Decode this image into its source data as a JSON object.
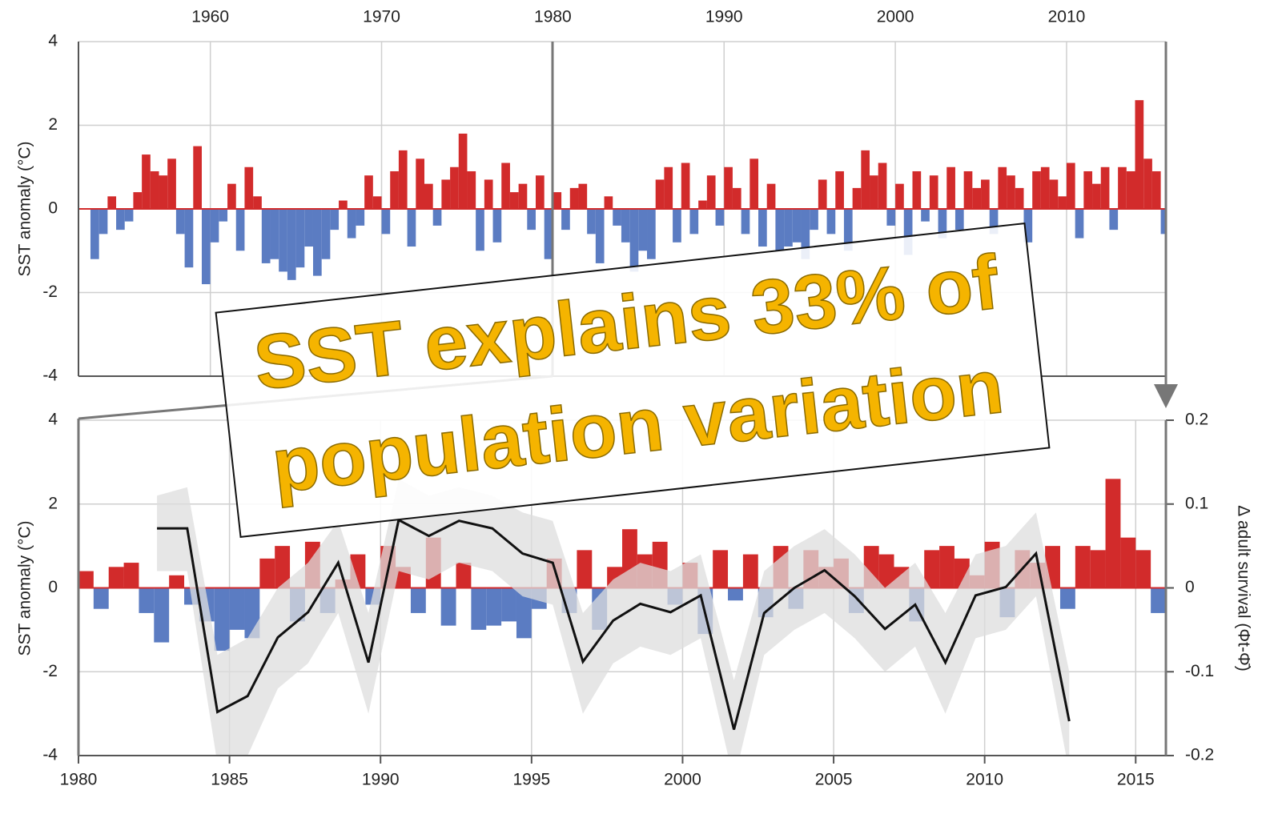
{
  "chart_data": [
    {
      "type": "bar",
      "y_label": "SST anomaly (°C)",
      "x": [
        1953,
        1953.5,
        1954,
        1954.5,
        1955,
        1955.5,
        1956,
        1956.5,
        1957,
        1957.5,
        1958,
        1958.5,
        1959,
        1959.5,
        1960,
        1960.5,
        1961,
        1961.5,
        1962,
        1962.5,
        1963,
        1963.5,
        1964,
        1964.5,
        1965,
        1965.5,
        1966,
        1966.5,
        1967,
        1967.5,
        1968,
        1968.5,
        1969,
        1969.5,
        1970,
        1970.5,
        1971,
        1971.5,
        1972,
        1972.5,
        1973,
        1973.5,
        1974,
        1974.5,
        1975,
        1975.5,
        1976,
        1976.5,
        1977,
        1977.5,
        1978,
        1978.5,
        1979,
        1979.5,
        1980,
        1980.5,
        1981,
        1981.5,
        1982,
        1982.5,
        1983,
        1983.5,
        1984,
        1984.5,
        1985,
        1985.5,
        1986,
        1986.5,
        1987,
        1987.5,
        1988,
        1988.5,
        1989,
        1989.5,
        1990,
        1990.5,
        1991,
        1991.5,
        1992,
        1992.5,
        1993,
        1993.5,
        1994,
        1994.5,
        1995,
        1995.5,
        1996,
        1996.5,
        1997,
        1997.5,
        1998,
        1998.5,
        1999,
        1999.5,
        2000,
        2000.5,
        2001,
        2001.5,
        2002,
        2002.5,
        2003,
        2003.5,
        2004,
        2004.5,
        2005,
        2005.5,
        2006,
        2006.5,
        2007,
        2007.5,
        2008,
        2008.5,
        2009,
        2009.5,
        2010,
        2010.5,
        2011,
        2011.5,
        2012,
        2012.5,
        2013,
        2013.5,
        2014,
        2014.5,
        2015,
        2015.5
      ],
      "series": [
        {
          "color": "#d22b2b",
          "negative_color": "#5b7cc2",
          "values": [
            -1.2,
            -0.6,
            0.3,
            -0.5,
            -0.3,
            0.4,
            1.3,
            0.9,
            0.8,
            1.2,
            -0.6,
            -1.4,
            1.5,
            -1.8,
            -0.8,
            -0.3,
            0.6,
            -1.0,
            1.0,
            0.3,
            -1.3,
            -1.2,
            -1.5,
            -1.7,
            -1.4,
            -0.9,
            -1.6,
            -1.2,
            -0.5,
            0.2,
            -0.7,
            -0.4,
            0.8,
            0.3,
            -0.6,
            0.9,
            1.4,
            -0.9,
            1.2,
            0.6,
            -0.4,
            0.7,
            1.0,
            1.8,
            0.9,
            -1.0,
            0.7,
            -0.8,
            1.1,
            0.4,
            0.6,
            -0.5,
            0.8,
            -1.2,
            0.4,
            -0.5,
            0.5,
            0.6,
            -0.6,
            -1.3,
            0.3,
            -0.4,
            -0.8,
            -1.5,
            -1.0,
            -1.2,
            0.7,
            1.0,
            -0.8,
            1.1,
            -0.6,
            0.2,
            0.8,
            -0.4,
            1.0,
            0.5,
            -0.6,
            1.2,
            -0.9,
            0.6,
            -1.0,
            -0.9,
            -0.8,
            -1.2,
            -0.5,
            0.7,
            -0.6,
            0.9,
            -1.0,
            0.5,
            1.4,
            0.8,
            1.1,
            -0.4,
            0.6,
            -1.1,
            0.9,
            -0.3,
            0.8,
            -0.7,
            1.0,
            -0.5,
            0.9,
            0.5,
            0.7,
            -0.6,
            1.0,
            0.8,
            0.5,
            -0.8,
            0.9,
            1.0,
            0.7,
            0.3,
            1.1,
            -0.7,
            0.9,
            0.6,
            1.0,
            -0.5,
            1.0,
            0.9,
            2.6,
            1.2,
            0.9,
            -0.6
          ]
        }
      ],
      "xlim": [
        1952.3,
        2015.8
      ],
      "xticks": [
        1960,
        1970,
        1980,
        1990,
        2000,
        2010
      ],
      "ylim": [
        -4,
        4
      ],
      "yticks": [
        -4,
        -2,
        0,
        2,
        4
      ],
      "grid": true
    },
    {
      "type": "line",
      "y_label": "SST anomaly (°C)",
      "y2_label": "Δ adult survival (Φt-Φ̄)",
      "x": [
        1982.6,
        1983.6,
        1984.6,
        1985.6,
        1986.6,
        1987.6,
        1988.6,
        1989.6,
        1990.6,
        1991.6,
        1992.6,
        1993.7,
        1994.7,
        1995.7,
        1996.7,
        1997.7,
        1998.6,
        1999.6,
        2000.6,
        2001.7,
        2002.7,
        2003.7,
        2004.7,
        2005.7,
        2006.7,
        2007.7,
        2008.7,
        2009.7,
        2010.7,
        2011.7,
        2012.8
      ],
      "series": [
        {
          "axis": "y2",
          "color": "#111111",
          "band_color": "#dddddd",
          "values": [
            0.071,
            0.071,
            -0.148,
            -0.129,
            -0.059,
            -0.029,
            0.03,
            -0.089,
            0.081,
            0.062,
            0.08,
            0.071,
            0.041,
            0.03,
            -0.088,
            -0.039,
            -0.019,
            -0.029,
            -0.009,
            -0.169,
            -0.03,
            0,
            0.021,
            -0.01,
            -0.049,
            -0.02,
            -0.089,
            -0.009,
            0.001,
            0.041,
            -0.159
          ],
          "lower": [
            0.02,
            0.02,
            -0.21,
            -0.2,
            -0.12,
            -0.09,
            -0.03,
            -0.15,
            0.02,
            0.01,
            0.03,
            0.02,
            -0.01,
            -0.02,
            -0.15,
            -0.09,
            -0.07,
            -0.08,
            -0.06,
            -0.23,
            -0.08,
            -0.05,
            -0.03,
            -0.06,
            -0.1,
            -0.07,
            -0.15,
            -0.06,
            -0.05,
            -0.01,
            -0.22
          ],
          "upper": [
            0.11,
            0.12,
            -0.08,
            -0.06,
            0,
            0.03,
            0.08,
            -0.03,
            0.13,
            0.11,
            0.12,
            0.11,
            0.09,
            0.08,
            -0.03,
            0.01,
            0.03,
            0.02,
            0.04,
            -0.11,
            0.02,
            0.05,
            0.07,
            0.04,
            0,
            0.03,
            -0.03,
            0.04,
            0.05,
            0.09,
            -0.1
          ]
        }
      ],
      "xlim": [
        1980,
        2016
      ],
      "xticks": [
        1980,
        1985,
        1990,
        1995,
        2000,
        2005,
        2010,
        2015
      ],
      "ylim": [
        -4,
        4
      ],
      "yticks": [
        -4,
        -2,
        0,
        2,
        4
      ],
      "y2lim": [
        -0.2,
        0.2
      ],
      "y2ticks": [
        -0.2,
        -0.1,
        0,
        0.1,
        0.2
      ],
      "grid": true,
      "annotation": [
        "SST explains 33% of",
        "population variation"
      ]
    }
  ]
}
